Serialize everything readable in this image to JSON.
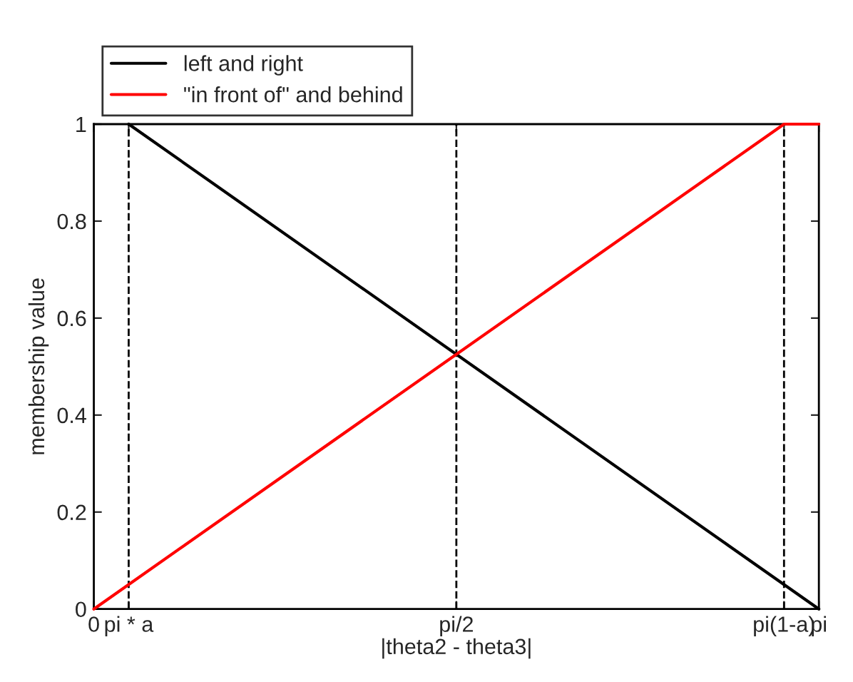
{
  "chart_data": {
    "type": "line",
    "xlabel": "|theta2 - theta3|",
    "ylabel": "membership value",
    "series": [
      {
        "name": "left and right",
        "color": "#000000",
        "x": [
          0.151,
          3.1416
        ],
        "values": [
          1,
          0
        ]
      },
      {
        "name": "\"in front of\" and behind",
        "color": "#ff0000",
        "x": [
          0,
          2.9906,
          3.1416
        ],
        "values": [
          0,
          1,
          1
        ]
      }
    ],
    "xlim": [
      0,
      3.1416
    ],
    "ylim": [
      0,
      1
    ],
    "xticks": [
      0,
      {
        "value": 0.151,
        "label": "pi * a"
      },
      {
        "value": 1.5708,
        "label": "pi/2"
      },
      {
        "value": 2.9906,
        "label": "pi(1-a)"
      },
      {
        "value": 3.1416,
        "label": "pi"
      }
    ],
    "yticks": [
      0,
      0.2,
      0.4,
      0.6,
      0.8,
      1
    ],
    "ref_lines": [
      {
        "axis": "x",
        "value": 0.151,
        "color": "#000000",
        "line_style": "dashed"
      },
      {
        "axis": "x",
        "value": 1.5708,
        "color": "#000000",
        "line_style": "dashed"
      },
      {
        "axis": "x",
        "value": 2.9906,
        "color": "#000000",
        "line_style": "dashed"
      }
    ],
    "legend": "top left",
    "grid": false,
    "line_style": "solid",
    "marker": "none"
  }
}
